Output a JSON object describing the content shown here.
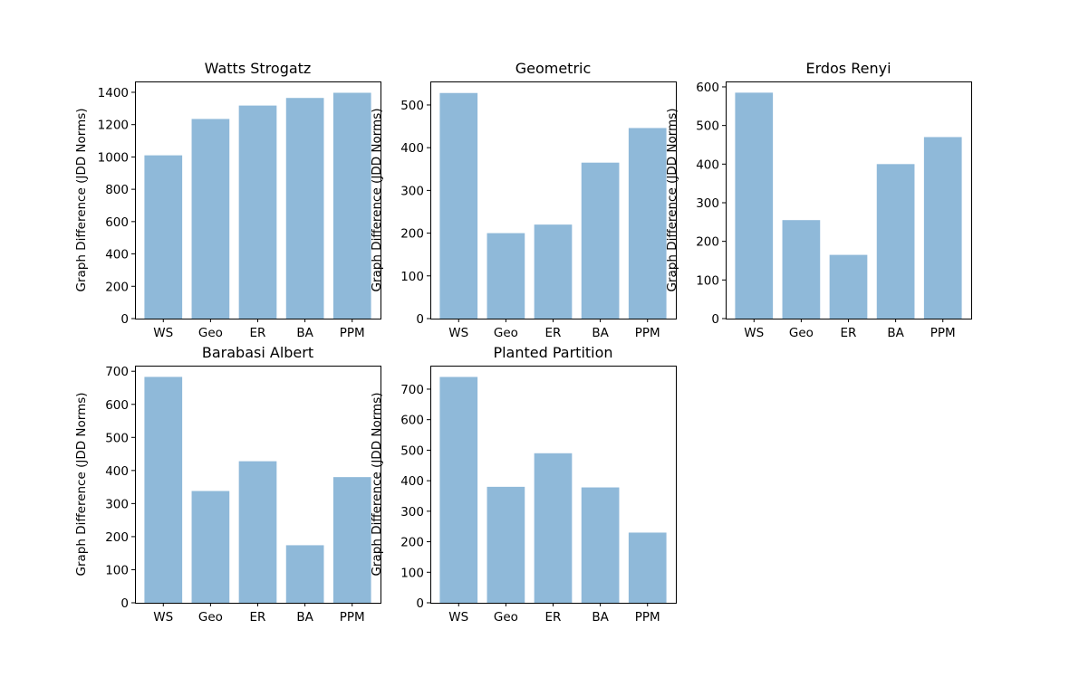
{
  "chart_data": [
    {
      "type": "bar",
      "title": "Watts Strogatz",
      "ylabel": "Graph Difference (JDD Norms)",
      "xlabel": "",
      "categories": [
        "WS",
        "Geo",
        "ER",
        "BA",
        "PPM"
      ],
      "values": [
        1010,
        1235,
        1318,
        1365,
        1397
      ],
      "yticks": [
        0,
        200,
        400,
        600,
        800,
        1000,
        1200,
        1400
      ],
      "ylim": [
        0,
        1467
      ],
      "color": "#8fb9d9",
      "grid": false
    },
    {
      "type": "bar",
      "title": "Geometric",
      "ylabel": "Graph Difference (JDD Norms)",
      "xlabel": "",
      "categories": [
        "WS",
        "Geo",
        "ER",
        "BA",
        "PPM"
      ],
      "values": [
        528,
        200,
        220,
        365,
        446
      ],
      "yticks": [
        0,
        100,
        200,
        300,
        400,
        500
      ],
      "ylim": [
        0,
        555
      ],
      "color": "#8fb9d9",
      "grid": false
    },
    {
      "type": "bar",
      "title": "Erdos Renyi",
      "ylabel": "Graph Difference (JDD Norms)",
      "xlabel": "",
      "categories": [
        "WS",
        "Geo",
        "ER",
        "BA",
        "PPM"
      ],
      "values": [
        585,
        255,
        165,
        400,
        470
      ],
      "yticks": [
        0,
        100,
        200,
        300,
        400,
        500,
        600
      ],
      "ylim": [
        0,
        614
      ],
      "color": "#8fb9d9",
      "grid": false
    },
    {
      "type": "bar",
      "title": "Barabasi Albert",
      "ylabel": "Graph Difference (JDD Norms)",
      "xlabel": "",
      "categories": [
        "WS",
        "Geo",
        "ER",
        "BA",
        "PPM"
      ],
      "values": [
        683,
        338,
        428,
        174,
        380
      ],
      "yticks": [
        0,
        100,
        200,
        300,
        400,
        500,
        600,
        700
      ],
      "ylim": [
        0,
        717
      ],
      "color": "#8fb9d9",
      "grid": false
    },
    {
      "type": "bar",
      "title": "Planted Partition",
      "ylabel": "Graph Difference (JDD Norms)",
      "xlabel": "",
      "categories": [
        "WS",
        "Geo",
        "ER",
        "BA",
        "PPM"
      ],
      "values": [
        740,
        380,
        490,
        378,
        230
      ],
      "yticks": [
        0,
        100,
        200,
        300,
        400,
        500,
        600,
        700
      ],
      "ylim": [
        0,
        777
      ],
      "color": "#8fb9d9",
      "grid": false
    }
  ]
}
